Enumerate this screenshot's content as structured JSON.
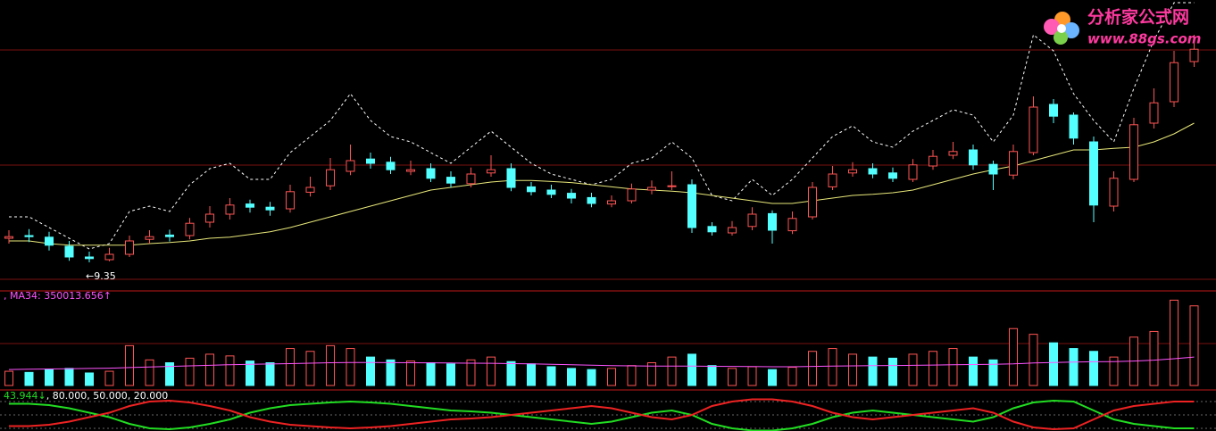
{
  "chart_data": {
    "type": "candlestick",
    "candles": {
      "open": [
        9.8,
        9.85,
        9.82,
        9.65,
        9.45,
        9.4,
        9.5,
        9.78,
        9.86,
        9.85,
        10.1,
        10.25,
        10.44,
        10.38,
        10.35,
        10.66,
        10.78,
        11.05,
        11.28,
        11.22,
        11.05,
        11.1,
        10.94,
        10.82,
        11.02,
        11.1,
        10.76,
        10.7,
        10.64,
        10.56,
        10.44,
        10.5,
        10.7,
        10.77,
        10.8,
        10.02,
        9.9,
        10.02,
        10.26,
        9.94,
        10.2,
        10.76,
        11.02,
        11.1,
        11.02,
        10.9,
        11.15,
        11.35,
        11.45,
        11.18,
        10.98,
        11.4,
        12.3,
        12.1,
        11.6,
        10.4,
        10.9,
        11.95,
        12.35,
        13.1
      ],
      "high": [
        9.95,
        9.97,
        9.92,
        9.75,
        9.55,
        9.62,
        9.85,
        9.95,
        9.96,
        10.18,
        10.4,
        10.55,
        10.52,
        10.48,
        10.8,
        10.95,
        11.3,
        11.55,
        11.4,
        11.32,
        11.25,
        11.2,
        11.05,
        11.12,
        11.35,
        11.2,
        10.85,
        10.8,
        10.72,
        10.65,
        10.6,
        10.82,
        10.88,
        11.05,
        10.9,
        10.1,
        10.12,
        10.38,
        10.32,
        10.3,
        10.85,
        11.15,
        11.22,
        11.2,
        11.12,
        11.28,
        11.45,
        11.6,
        11.55,
        11.25,
        11.55,
        12.45,
        12.4,
        12.15,
        11.7,
        11.05,
        12.05,
        12.6,
        13.3,
        13.6
      ],
      "low": [
        9.7,
        9.73,
        9.57,
        9.38,
        9.35,
        9.37,
        9.45,
        9.7,
        9.74,
        9.78,
        10.0,
        10.15,
        10.28,
        10.22,
        10.28,
        10.58,
        10.7,
        10.98,
        11.1,
        11.0,
        10.98,
        10.85,
        10.75,
        10.75,
        10.95,
        10.68,
        10.6,
        10.55,
        10.45,
        10.38,
        10.38,
        10.45,
        10.62,
        10.7,
        9.9,
        9.85,
        9.85,
        9.95,
        9.7,
        9.88,
        10.15,
        10.7,
        10.95,
        10.92,
        10.85,
        10.85,
        11.08,
        11.28,
        11.08,
        10.7,
        10.9,
        11.35,
        11.95,
        11.55,
        10.1,
        10.3,
        10.85,
        11.85,
        12.25,
        13.0
      ],
      "close": [
        9.83,
        9.83,
        9.67,
        9.45,
        9.42,
        9.5,
        9.75,
        9.83,
        9.83,
        10.08,
        10.25,
        10.42,
        10.38,
        10.33,
        10.67,
        10.75,
        11.08,
        11.25,
        11.2,
        11.08,
        11.08,
        10.92,
        10.83,
        11.0,
        11.08,
        10.75,
        10.67,
        10.62,
        10.55,
        10.45,
        10.5,
        10.72,
        10.75,
        10.78,
        10.0,
        9.92,
        10.0,
        10.25,
        9.95,
        10.17,
        10.75,
        11.0,
        11.08,
        11.0,
        10.92,
        11.17,
        11.33,
        11.42,
        11.17,
        11.0,
        11.42,
        12.25,
        12.08,
        11.67,
        10.42,
        10.92,
        11.92,
        12.33,
        13.08,
        13.33
      ]
    },
    "up_color": "#ff5454",
    "down_color": "#54ffff",
    "ylim": [
      9,
      14
    ],
    "annotation": "←9.35",
    "overlays": [
      {
        "color": "#ffffff",
        "dashed": true,
        "values": [
          10.2,
          10.2,
          10.0,
          9.8,
          9.6,
          9.7,
          10.3,
          10.4,
          10.3,
          10.8,
          11.1,
          11.2,
          10.9,
          10.9,
          11.4,
          11.7,
          12.0,
          12.5,
          12.0,
          11.7,
          11.6,
          11.4,
          11.2,
          11.5,
          11.8,
          11.5,
          11.2,
          11.0,
          10.9,
          10.8,
          10.9,
          11.2,
          11.3,
          11.6,
          11.3,
          10.6,
          10.5,
          10.9,
          10.6,
          10.9,
          11.3,
          11.7,
          11.9,
          11.6,
          11.5,
          11.8,
          12.0,
          12.2,
          12.1,
          11.6,
          12.1,
          13.6,
          13.3,
          12.5,
          12.0,
          11.6,
          12.6,
          13.5,
          14.2,
          14.2
        ]
      },
      {
        "color": "#e8e87a",
        "dashed": false,
        "values": [
          9.75,
          9.75,
          9.7,
          9.67,
          9.67,
          9.67,
          9.67,
          9.7,
          9.72,
          9.75,
          9.8,
          9.82,
          9.87,
          9.92,
          10.0,
          10.1,
          10.2,
          10.3,
          10.4,
          10.5,
          10.6,
          10.7,
          10.75,
          10.8,
          10.85,
          10.88,
          10.88,
          10.86,
          10.84,
          10.8,
          10.76,
          10.72,
          10.7,
          10.68,
          10.65,
          10.6,
          10.55,
          10.5,
          10.45,
          10.45,
          10.5,
          10.55,
          10.6,
          10.62,
          10.65,
          10.7,
          10.8,
          10.9,
          11.0,
          11.08,
          11.15,
          11.25,
          11.35,
          11.45,
          11.45,
          11.48,
          11.5,
          11.6,
          11.75,
          11.95
        ]
      }
    ],
    "volume": {
      "label": ", MA34: 350013.656↑",
      "label_color": "#ff54ff",
      "ylim": [
        0,
        1600000
      ],
      "values": [
        250000,
        230000,
        280000,
        300000,
        220000,
        250000,
        700000,
        450000,
        400000,
        480000,
        550000,
        520000,
        430000,
        400000,
        650000,
        600000,
        700000,
        650000,
        500000,
        450000,
        430000,
        400000,
        380000,
        450000,
        500000,
        420000,
        380000,
        330000,
        300000,
        280000,
        300000,
        350000,
        400000,
        500000,
        550000,
        350000,
        300000,
        330000,
        280000,
        320000,
        600000,
        650000,
        550000,
        500000,
        480000,
        550000,
        600000,
        650000,
        500000,
        450000,
        1000000,
        900000,
        750000,
        650000,
        600000,
        500000,
        850000,
        950000,
        1500000,
        1400000
      ],
      "ma": {
        "color": "#ff54ff",
        "values": [
          280000,
          285000,
          290000,
          295000,
          300000,
          305000,
          315000,
          325000,
          335000,
          345000,
          355000,
          365000,
          372000,
          378000,
          385000,
          392000,
          400000,
          405000,
          405000,
          402000,
          400000,
          398000,
          395000,
          392000,
          390000,
          385000,
          380000,
          372000,
          365000,
          358000,
          350000,
          345000,
          342000,
          340000,
          340000,
          338000,
          335000,
          333000,
          330000,
          330000,
          335000,
          340000,
          345000,
          350000,
          352000,
          355000,
          360000,
          365000,
          368000,
          372000,
          380000,
          395000,
          405000,
          412000,
          418000,
          420000,
          430000,
          445000,
          470000,
          500000
        ]
      }
    },
    "oscillator": {
      "value_label": "43.944↓",
      "ylim": [
        0,
        100
      ],
      "levels": [
        {
          "value": 80,
          "label": "80.000"
        },
        {
          "value": 50,
          "label": "50.000"
        },
        {
          "value": 20,
          "label": "20.000"
        }
      ],
      "series": [
        {
          "color": "#22dd22",
          "values": [
            75,
            75,
            72,
            65,
            55,
            45,
            30,
            20,
            18,
            22,
            30,
            40,
            55,
            65,
            72,
            75,
            78,
            80,
            78,
            75,
            70,
            65,
            60,
            58,
            55,
            50,
            45,
            40,
            35,
            30,
            35,
            45,
            55,
            60,
            50,
            30,
            20,
            15,
            15,
            20,
            30,
            45,
            55,
            60,
            55,
            50,
            45,
            40,
            35,
            45,
            65,
            78,
            82,
            80,
            60,
            40,
            30,
            25,
            20,
            20
          ]
        },
        {
          "color": "#ee2222",
          "values": [
            25,
            25,
            28,
            35,
            45,
            55,
            70,
            80,
            82,
            78,
            70,
            60,
            45,
            35,
            28,
            25,
            22,
            20,
            22,
            25,
            30,
            35,
            40,
            42,
            45,
            50,
            55,
            60,
            65,
            70,
            65,
            55,
            45,
            40,
            50,
            70,
            80,
            85,
            85,
            80,
            70,
            55,
            45,
            40,
            45,
            50,
            55,
            60,
            65,
            55,
            35,
            22,
            18,
            20,
            40,
            60,
            70,
            75,
            80,
            80
          ]
        }
      ]
    },
    "watermark": {
      "title": "分析家公式网",
      "url": "www.88gs.com"
    }
  }
}
